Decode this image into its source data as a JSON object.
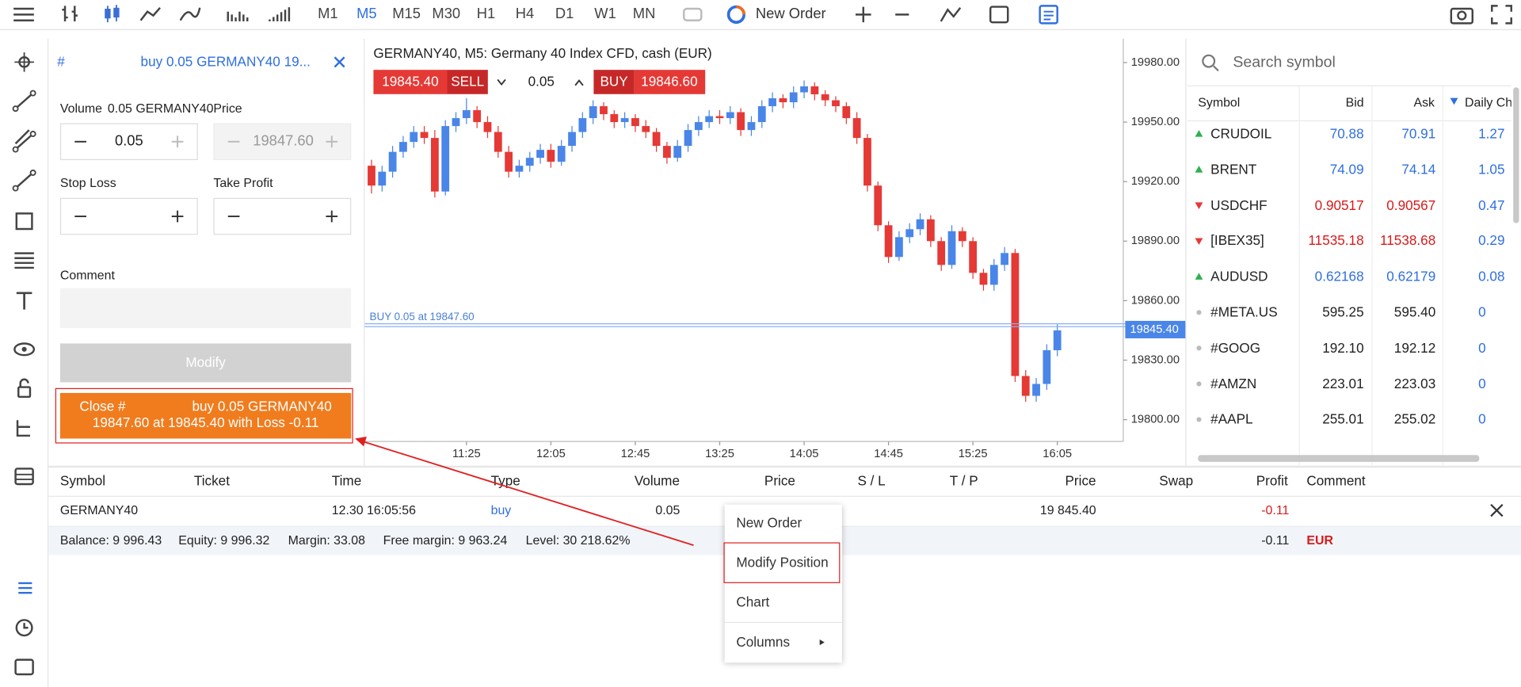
{
  "toolbar": {
    "timeframes": [
      "M1",
      "M5",
      "M15",
      "M30",
      "H1",
      "H4",
      "D1",
      "W1",
      "MN"
    ],
    "active_timeframe": 1,
    "new_order": "New Order"
  },
  "order_panel": {
    "title_hash": "#",
    "title": "buy 0.05 GERMANY40 19...",
    "volume_label": "Volume",
    "volume_symbol": "0.05 GERMANY40",
    "volume": "0.05",
    "price_label": "Price",
    "price": "19847.60",
    "stop_loss_label": "Stop Loss",
    "take_profit_label": "Take Profit",
    "comment_label": "Comment",
    "modify": "Modify",
    "close_line1_a": "Close #",
    "close_line1_b": "buy 0.05 GERMANY40",
    "close_line2": "19847.60 at 19845.40 with Loss -0.11"
  },
  "chart": {
    "type": "candlestick",
    "title": "GERMANY40, M5: Germany 40 Index CFD, cash (EUR)",
    "sell_price": "19845.40",
    "sell": "SELL",
    "volume": "0.05",
    "buy": "BUY",
    "buy_price": "19846.60",
    "up_color": "#4a86e8",
    "down_color": "#e53935",
    "ylim": [
      19789,
      19991
    ],
    "yticks": [
      {
        "value": 19980,
        "label": "19980.00"
      },
      {
        "value": 19950,
        "label": "19950.00"
      },
      {
        "value": 19920,
        "label": "19920.00"
      },
      {
        "value": 19890,
        "label": "19890.00"
      },
      {
        "value": 19860,
        "label": "19860.00"
      },
      {
        "value": 19830,
        "label": "19830.00"
      },
      {
        "value": 19800,
        "label": "19800.00"
      }
    ],
    "position_line": {
      "value": 19847.6,
      "label": "BUY 0.05 at 19847.60"
    },
    "current_price": {
      "value": 19845.4,
      "label": "19845.40"
    },
    "categories": [
      null,
      null,
      null,
      null,
      null,
      null,
      null,
      null,
      null,
      "11:25",
      null,
      null,
      null,
      null,
      null,
      null,
      null,
      "12:05",
      null,
      null,
      null,
      null,
      null,
      null,
      null,
      "12:45",
      null,
      null,
      null,
      null,
      null,
      null,
      null,
      "13:25",
      null,
      null,
      null,
      null,
      null,
      null,
      null,
      "14:05",
      null,
      null,
      null,
      null,
      null,
      null,
      null,
      "14:45",
      null,
      null,
      null,
      null,
      null,
      null,
      null,
      "15:25",
      null,
      null,
      null,
      null,
      null,
      null,
      null,
      "16:05"
    ],
    "candles": [
      [
        19928,
        19931,
        19914,
        19918
      ],
      [
        19918,
        19928,
        19915,
        19925
      ],
      [
        19925,
        19938,
        19922,
        19935
      ],
      [
        19935,
        19943,
        19932,
        19940
      ],
      [
        19940,
        19948,
        19937,
        19945
      ],
      [
        19945,
        19948,
        19939,
        19942
      ],
      [
        19942,
        19946,
        19912,
        19915
      ],
      [
        19915,
        19951,
        19913,
        19948
      ],
      [
        19948,
        19955,
        19945,
        19952
      ],
      [
        19952,
        19962,
        19949,
        19956
      ],
      [
        19956,
        19958,
        19947,
        19950
      ],
      [
        19950,
        19953,
        19942,
        19945
      ],
      [
        19945,
        19948,
        19932,
        19935
      ],
      [
        19935,
        19938,
        19922,
        19925
      ],
      [
        19925,
        19931,
        19922,
        19928
      ],
      [
        19928,
        19935,
        19925,
        19932
      ],
      [
        19932,
        19939,
        19929,
        19936
      ],
      [
        19936,
        19939,
        19927,
        19930
      ],
      [
        19930,
        19941,
        19928,
        19938
      ],
      [
        19938,
        19948,
        19935,
        19945
      ],
      [
        19945,
        19955,
        19942,
        19952
      ],
      [
        19952,
        19961,
        19949,
        19958
      ],
      [
        19958,
        19960,
        19951,
        19954
      ],
      [
        19954,
        19956,
        19947,
        19950
      ],
      [
        19950,
        19955,
        19947,
        19952
      ],
      [
        19952,
        19954,
        19945,
        19948
      ],
      [
        19948,
        19951,
        19942,
        19945
      ],
      [
        19945,
        19947,
        19935,
        19938
      ],
      [
        19938,
        19940,
        19929,
        19932
      ],
      [
        19932,
        19941,
        19930,
        19938
      ],
      [
        19938,
        19949,
        19935,
        19946
      ],
      [
        19946,
        19953,
        19943,
        19950
      ],
      [
        19950,
        19956,
        19947,
        19953
      ],
      [
        19953,
        19956,
        19949,
        19952
      ],
      [
        19952,
        19958,
        19949,
        19955
      ],
      [
        19955,
        19957,
        19943,
        19946
      ],
      [
        19946,
        19953,
        19943,
        19950
      ],
      [
        19950,
        19961,
        19947,
        19958
      ],
      [
        19958,
        19965,
        19955,
        19962
      ],
      [
        19962,
        19964,
        19957,
        19960
      ],
      [
        19960,
        19968,
        19957,
        19965
      ],
      [
        19965,
        19971,
        19962,
        19968
      ],
      [
        19968,
        19970,
        19961,
        19964
      ],
      [
        19964,
        19966,
        19958,
        19961
      ],
      [
        19961,
        19963,
        19955,
        19958
      ],
      [
        19958,
        19960,
        19949,
        19952
      ],
      [
        19952,
        19955,
        19939,
        19942
      ],
      [
        19942,
        19944,
        19915,
        19918
      ],
      [
        19918,
        19920,
        19895,
        19898
      ],
      [
        19898,
        19900,
        19879,
        19882
      ],
      [
        19882,
        19895,
        19880,
        19892
      ],
      [
        19892,
        19899,
        19889,
        19896
      ],
      [
        19896,
        19904,
        19893,
        19901
      ],
      [
        19901,
        19903,
        19887,
        19890
      ],
      [
        19890,
        19892,
        19875,
        19878
      ],
      [
        19878,
        19898,
        19876,
        19895
      ],
      [
        19895,
        19897,
        19887,
        19890
      ],
      [
        19890,
        19892,
        19871,
        19874
      ],
      [
        19874,
        19876,
        19865,
        19868
      ],
      [
        19868,
        19881,
        19865,
        19878
      ],
      [
        19878,
        19887,
        19875,
        19884
      ],
      [
        19884,
        19886,
        19819,
        19822
      ],
      [
        19822,
        19825,
        19809,
        19812
      ],
      [
        19812,
        19821,
        19809,
        19818
      ],
      [
        19818,
        19838,
        19815,
        19835
      ],
      [
        19835,
        19848,
        19832,
        19845
      ]
    ]
  },
  "market_watch": {
    "search_placeholder": "Search symbol",
    "headers": [
      "Symbol",
      "Bid",
      "Ask",
      "Daily Ch"
    ],
    "rows": [
      {
        "symbol": "CRUDOIL",
        "bid": "70.88",
        "ask": "70.91",
        "change": "1.27",
        "trend": "up"
      },
      {
        "symbol": "BRENT",
        "bid": "74.09",
        "ask": "74.14",
        "change": "1.05",
        "trend": "up"
      },
      {
        "symbol": "USDCHF",
        "bid": "0.90517",
        "ask": "0.90567",
        "change": "0.47",
        "trend": "down"
      },
      {
        "symbol": "[IBEX35]",
        "bid": "11535.18",
        "ask": "11538.68",
        "change": "0.29",
        "trend": "down"
      },
      {
        "symbol": "AUDUSD",
        "bid": "0.62168",
        "ask": "0.62179",
        "change": "0.08",
        "trend": "up"
      },
      {
        "symbol": "#META.US",
        "bid": "595.25",
        "ask": "595.40",
        "change": "0",
        "trend": "none"
      },
      {
        "symbol": "#GOOG",
        "bid": "192.10",
        "ask": "192.12",
        "change": "0",
        "trend": "none"
      },
      {
        "symbol": "#AMZN",
        "bid": "223.01",
        "ask": "223.03",
        "change": "0",
        "trend": "none"
      },
      {
        "symbol": "#AAPL",
        "bid": "255.01",
        "ask": "255.02",
        "change": "0",
        "trend": "none"
      }
    ]
  },
  "positions": {
    "headers": [
      "Symbol",
      "Ticket",
      "Time",
      "Type",
      "Volume",
      "Price",
      "S / L",
      "T / P",
      "Price",
      "Swap",
      "Profit",
      "Comment"
    ],
    "row": {
      "symbol": "GERMANY40",
      "time": "12.30 16:05:56",
      "type": "buy",
      "volume": "0.05",
      "price": "19 845.40",
      "profit": "-0.11"
    },
    "summary": {
      "balance": "Balance: 9 996.43",
      "equity": "Equity: 9 996.32",
      "margin": "Margin: 33.08",
      "free_margin": "Free margin: 9 963.24",
      "level": "Level: 30 218.62%",
      "profit": "-0.11",
      "currency": "EUR"
    }
  },
  "context_menu": {
    "items": [
      "New Order",
      "Modify Position",
      "Chart",
      "Columns"
    ],
    "highlighted": 1
  }
}
